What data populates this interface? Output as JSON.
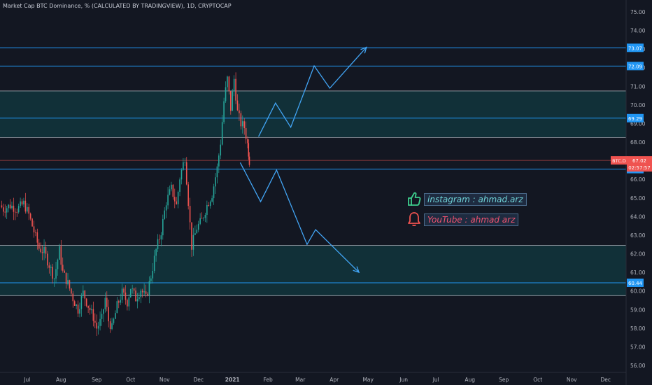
{
  "header": {
    "title": "Market Cap BTC Dominance, % (CALCULATED BY TRADINGVIEW), 1D, CRYPTOCAP"
  },
  "social": {
    "instagram": "instagram : ahmad.arz",
    "youtube": "YouTube : ahmad arz",
    "thumb_icon": "thumbs-up-icon",
    "bell_icon": "bell-icon"
  },
  "colors": {
    "background": "#131722",
    "zone_fill": "#123a40",
    "line": "#2196f3",
    "arrow": "#42a5f5",
    "bull": "#26a69a",
    "bear": "#ef5350",
    "axis_text": "#b2b5be"
  },
  "chart_data": {
    "type": "candlestick",
    "y_axis_ticks": [
      "75.00",
      "74.00",
      "73.00",
      "72.00",
      "71.00",
      "70.00",
      "69.00",
      "68.00",
      "67.00",
      "66.00",
      "65.00",
      "64.00",
      "63.00",
      "62.00",
      "61.00",
      "60.00",
      "59.00",
      "58.00",
      "57.00",
      "56.00"
    ],
    "ylim": [
      55.6,
      75.4
    ],
    "x_axis_labels": [
      "Jul",
      "Aug",
      "Sep",
      "Oct",
      "Nov",
      "Dec",
      "2021",
      "Feb",
      "Mar",
      "Apr",
      "May",
      "Jun",
      "Jul",
      "Aug",
      "Sep",
      "Oct",
      "Nov",
      "Dec"
    ],
    "x_label_months": [
      6.8,
      7.8,
      8.85,
      9.85,
      10.85,
      11.85,
      12.85,
      13.9,
      14.85,
      15.85,
      16.85,
      17.9,
      18.85,
      19.85,
      20.85,
      21.85,
      22.85,
      23.85
    ],
    "horizontal_lines": [
      {
        "price": 73.07,
        "label": "73.07"
      },
      {
        "price": 72.09,
        "label": "72.09"
      },
      {
        "price": 69.29,
        "label": "69.29"
      },
      {
        "price": 66.55,
        "label": "66.55"
      },
      {
        "price": 60.44,
        "label": "60.44"
      }
    ],
    "zones": [
      {
        "from": 68.25,
        "to": 70.75
      },
      {
        "from": 59.75,
        "to": 62.45
      }
    ],
    "current_price": {
      "symbol": "BTC.D",
      "value": "67.02",
      "countdown": "02:57:57",
      "price": 67.02
    },
    "path_bullish": [
      [
        13.62,
        68.3
      ],
      [
        14.12,
        70.1
      ],
      [
        14.57,
        68.8
      ],
      [
        15.26,
        72.1
      ],
      [
        15.72,
        70.9
      ],
      [
        16.8,
        73.1
      ]
    ],
    "path_bearish": [
      [
        13.08,
        66.9
      ],
      [
        13.68,
        64.8
      ],
      [
        14.15,
        66.5
      ],
      [
        15.05,
        62.5
      ],
      [
        15.3,
        63.3
      ],
      [
        16.58,
        61.0
      ]
    ],
    "series": [
      {
        "month": 6.0,
        "value": 64.6
      },
      {
        "month": 6.1,
        "value": 64.4
      },
      {
        "month": 6.3,
        "value": 64.6
      },
      {
        "month": 6.5,
        "value": 64.4
      },
      {
        "month": 6.7,
        "value": 64.7
      },
      {
        "month": 6.85,
        "value": 64.1
      },
      {
        "month": 7.0,
        "value": 63.2
      },
      {
        "month": 7.15,
        "value": 62.3
      },
      {
        "month": 7.3,
        "value": 62.1
      },
      {
        "month": 7.45,
        "value": 61.4
      },
      {
        "month": 7.6,
        "value": 60.7
      },
      {
        "month": 7.75,
        "value": 62.2
      },
      {
        "month": 7.85,
        "value": 61.0
      },
      {
        "month": 8.0,
        "value": 60.4
      },
      {
        "month": 8.15,
        "value": 59.6
      },
      {
        "month": 8.3,
        "value": 59.0
      },
      {
        "month": 8.45,
        "value": 59.9
      },
      {
        "month": 8.6,
        "value": 59.2
      },
      {
        "month": 8.75,
        "value": 58.6
      },
      {
        "month": 8.85,
        "value": 58.0
      },
      {
        "month": 9.0,
        "value": 58.5
      },
      {
        "month": 9.1,
        "value": 59.6
      },
      {
        "month": 9.2,
        "value": 58.4
      },
      {
        "month": 9.3,
        "value": 58.0
      },
      {
        "month": 9.45,
        "value": 59.2
      },
      {
        "month": 9.6,
        "value": 59.9
      },
      {
        "month": 9.75,
        "value": 59.4
      },
      {
        "month": 9.85,
        "value": 60.2
      },
      {
        "month": 10.0,
        "value": 59.6
      },
      {
        "month": 10.15,
        "value": 60.1
      },
      {
        "month": 10.3,
        "value": 59.6
      },
      {
        "month": 10.45,
        "value": 60.8
      },
      {
        "month": 10.6,
        "value": 62.2
      },
      {
        "month": 10.75,
        "value": 63.2
      },
      {
        "month": 10.9,
        "value": 64.8
      },
      {
        "month": 11.05,
        "value": 65.5
      },
      {
        "month": 11.2,
        "value": 64.6
      },
      {
        "month": 11.3,
        "value": 66.1
      },
      {
        "month": 11.45,
        "value": 67.2
      },
      {
        "month": 11.55,
        "value": 64.8
      },
      {
        "month": 11.65,
        "value": 62.4
      },
      {
        "month": 11.8,
        "value": 63.4
      },
      {
        "month": 11.95,
        "value": 63.8
      },
      {
        "month": 12.1,
        "value": 64.6
      },
      {
        "month": 12.25,
        "value": 65.2
      },
      {
        "month": 12.4,
        "value": 66.6
      },
      {
        "month": 12.5,
        "value": 68.0
      },
      {
        "month": 12.6,
        "value": 70.2
      },
      {
        "month": 12.7,
        "value": 71.4
      },
      {
        "month": 12.8,
        "value": 69.8
      },
      {
        "month": 12.9,
        "value": 71.4
      },
      {
        "month": 13.0,
        "value": 69.6
      },
      {
        "month": 13.1,
        "value": 69.0
      },
      {
        "month": 13.2,
        "value": 68.8
      },
      {
        "month": 13.3,
        "value": 67.9
      },
      {
        "month": 13.35,
        "value": 67.0
      }
    ]
  }
}
